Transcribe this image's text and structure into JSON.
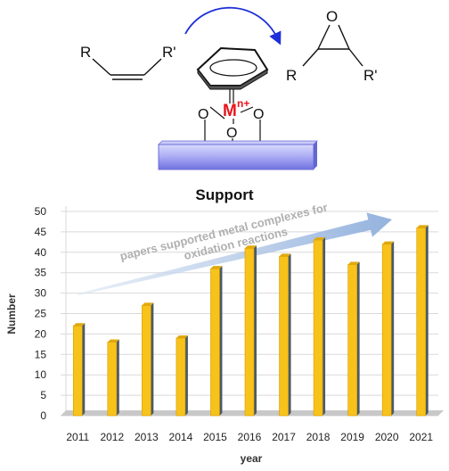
{
  "scheme": {
    "alkene_left": "R",
    "alkene_right": "R'",
    "epoxide_oxygen": "O",
    "epoxide_left": "R",
    "epoxide_right": "R'",
    "metal": "M",
    "metal_charge": "n+",
    "ligand_o1": "O",
    "ligand_o2": "O",
    "ligand_o3": "O",
    "support_label": "Support",
    "colors": {
      "metal": "#e8141b",
      "arrow": "#1d2fd8",
      "support": "#9b9cf0"
    }
  },
  "chart_data": {
    "type": "bar",
    "categories": [
      "2011",
      "2012",
      "2013",
      "2014",
      "2015",
      "2016",
      "2017",
      "2018",
      "2019",
      "2020",
      "2021"
    ],
    "values": [
      22,
      18,
      27,
      19,
      36,
      41,
      39,
      43,
      37,
      42,
      46
    ],
    "xlabel": "year",
    "ylabel": "Number",
    "ylim": [
      0,
      50
    ],
    "yticks": [
      0,
      5,
      10,
      15,
      20,
      25,
      30,
      35,
      40,
      45,
      50
    ],
    "grid": true,
    "annotation": {
      "line1": "papers supported metal complexes for",
      "line2": "oxidation reactions"
    },
    "colors": {
      "bar": "#f7c21a",
      "bar_edge": "#4b5a66",
      "floor": "#c8c8c8",
      "trend_arrow": "#aec4e6"
    }
  }
}
